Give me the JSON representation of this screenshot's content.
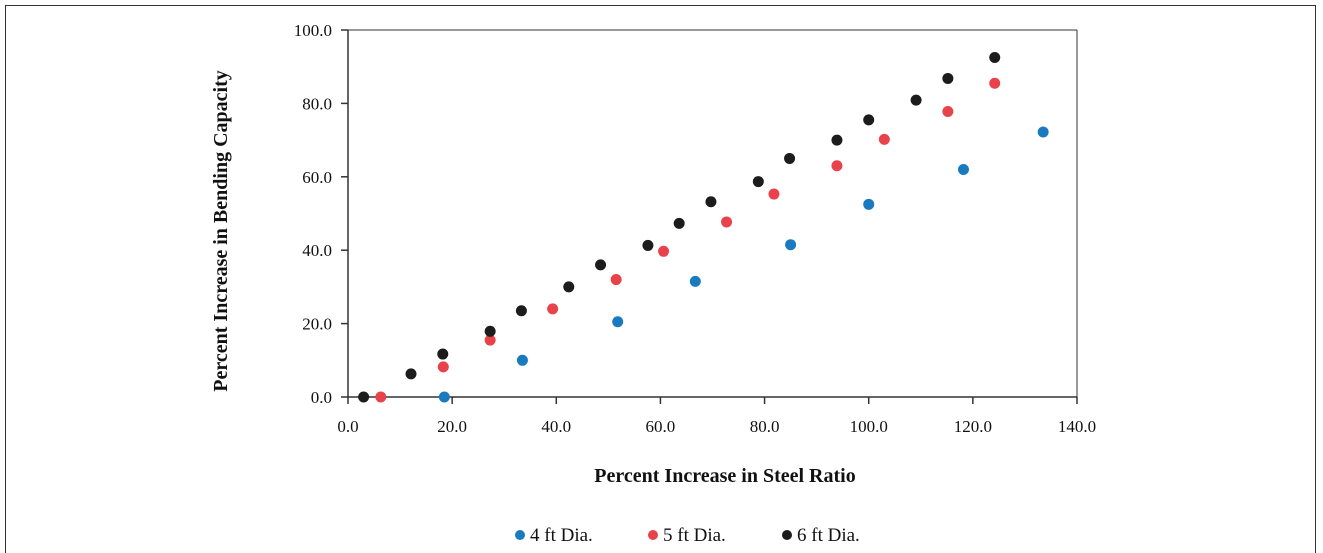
{
  "chart_data": {
    "type": "scatter",
    "title": "",
    "xlabel": "Percent Increase in Steel Ratio",
    "ylabel": "Percent Increase in Bending Capacity",
    "xlim": [
      0,
      140
    ],
    "ylim": [
      0,
      100
    ],
    "xticks": [
      "0.0",
      "20.0",
      "40.0",
      "60.0",
      "80.0",
      "100.0",
      "120.0",
      "140.0"
    ],
    "yticks": [
      "0.0",
      "20.0",
      "40.0",
      "60.0",
      "80.0",
      "100.0"
    ],
    "legend_position": "bottom",
    "grid": false,
    "series": [
      {
        "name": "4 ft Dia.",
        "color": "#1a7abf",
        "points": [
          [
            18.5,
            0.0
          ],
          [
            33.5,
            10.0
          ],
          [
            51.8,
            20.5
          ],
          [
            66.7,
            31.5
          ],
          [
            85.0,
            41.5
          ],
          [
            100.0,
            52.5
          ],
          [
            118.2,
            62.0
          ],
          [
            133.5,
            72.2
          ]
        ]
      },
      {
        "name": "5 ft Dia.",
        "color": "#e8434b",
        "points": [
          [
            6.3,
            0.0
          ],
          [
            18.3,
            8.2
          ],
          [
            27.3,
            15.5
          ],
          [
            39.3,
            24.0
          ],
          [
            51.5,
            32.0
          ],
          [
            60.6,
            39.7
          ],
          [
            72.7,
            47.7
          ],
          [
            81.8,
            55.3
          ],
          [
            93.9,
            63.0
          ],
          [
            103.0,
            70.2
          ],
          [
            115.2,
            77.8
          ],
          [
            124.2,
            85.5
          ]
        ]
      },
      {
        "name": "6 ft Dia.",
        "color": "#1c1c1c",
        "points": [
          [
            3.0,
            0.0
          ],
          [
            12.1,
            6.3
          ],
          [
            18.2,
            11.7
          ],
          [
            27.3,
            17.9
          ],
          [
            33.3,
            23.5
          ],
          [
            42.4,
            30.0
          ],
          [
            48.5,
            36.0
          ],
          [
            57.6,
            41.3
          ],
          [
            63.6,
            47.3
          ],
          [
            69.7,
            53.2
          ],
          [
            78.8,
            58.7
          ],
          [
            84.8,
            65.0
          ],
          [
            93.9,
            70.0
          ],
          [
            100.0,
            75.5
          ],
          [
            109.1,
            80.9
          ],
          [
            115.2,
            86.8
          ],
          [
            124.2,
            92.5
          ]
        ]
      }
    ]
  }
}
